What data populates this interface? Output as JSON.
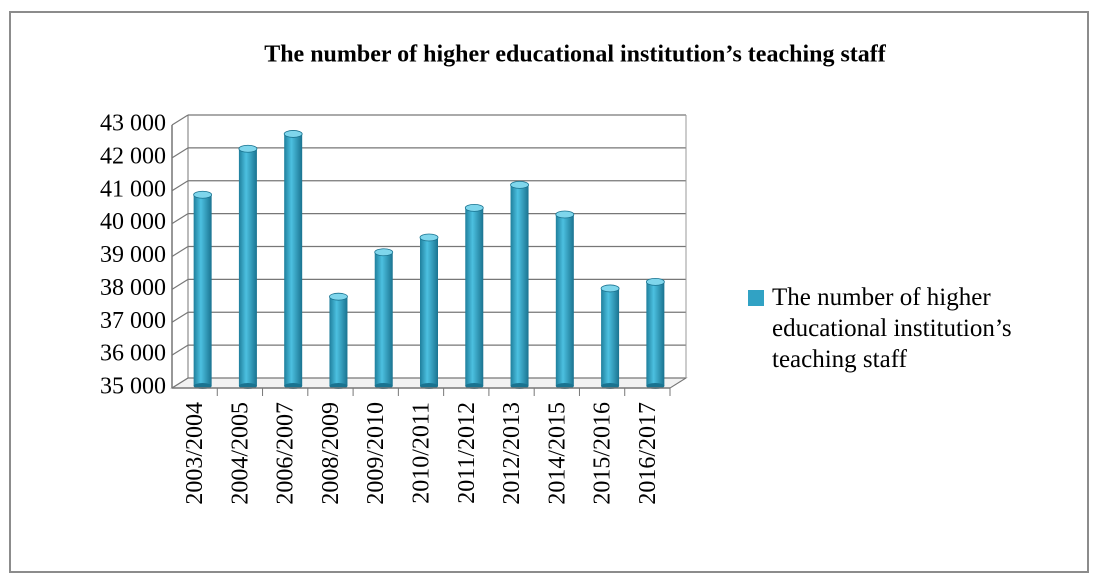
{
  "chart_data": {
    "type": "bar",
    "title": "The number of higher educational institution’s teaching staff",
    "categories": [
      "2003/2004",
      "2004/2005",
      "2006/2007",
      "2008/2009",
      "2009/2010",
      "2010/2011",
      "2011/2012",
      "2012/2013",
      "2014/2015",
      "2015/2016",
      "2016/2017"
    ],
    "series": [
      {
        "name": "The number of higher educational institution’s teaching staff",
        "color": "#31a2c4",
        "values": [
          41000,
          42400,
          42850,
          37900,
          39250,
          39700,
          40600,
          41300,
          40400,
          38150,
          38350
        ]
      }
    ],
    "ylim": [
      35000,
      43000
    ],
    "yticks": [
      {
        "value": 35000,
        "label": "35 000"
      },
      {
        "value": 36000,
        "label": "36 000"
      },
      {
        "value": 37000,
        "label": "37 000"
      },
      {
        "value": 38000,
        "label": "38 000"
      },
      {
        "value": 39000,
        "label": "39 000"
      },
      {
        "value": 40000,
        "label": "40 000"
      },
      {
        "value": 41000,
        "label": "41 000"
      },
      {
        "value": 42000,
        "label": "42 000"
      },
      {
        "value": 43000,
        "label": "43 000"
      }
    ],
    "grid": true,
    "legend": "right"
  }
}
